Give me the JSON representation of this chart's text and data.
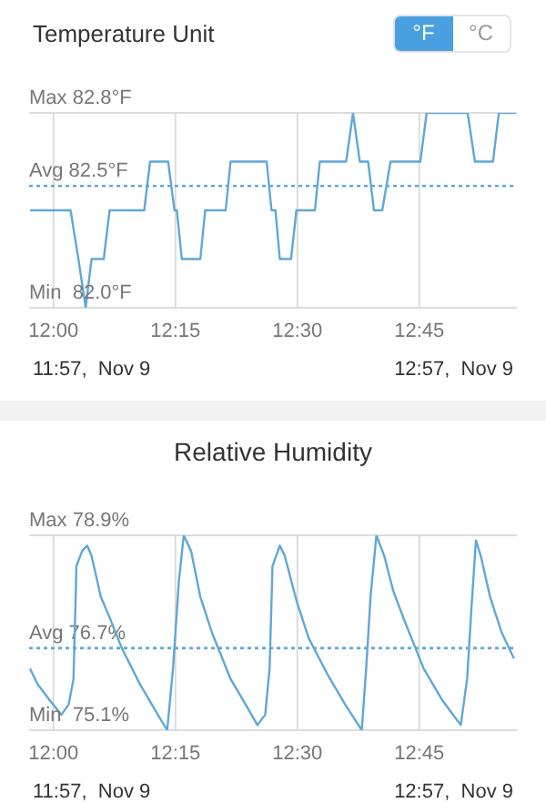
{
  "chart_data": [
    {
      "type": "line",
      "title": "Temperature Unit",
      "annotations": [
        "°F",
        "°C",
        "11:57,  Nov 9",
        "12:57,  Nov 9",
        "Min",
        "Max"
      ],
      "x": [
        11.952,
        12.035,
        12.051,
        12.066,
        12.078,
        12.103,
        12.115,
        12.186,
        12.198,
        12.235,
        12.248,
        12.253,
        12.263,
        12.301,
        12.311,
        12.353,
        12.363,
        12.437,
        12.447,
        12.455,
        12.464,
        12.487,
        12.498,
        12.536,
        12.546,
        12.6,
        12.614,
        12.628,
        12.645,
        12.657,
        12.674,
        12.691,
        12.752,
        12.765,
        12.849,
        12.864,
        12.901,
        12.913,
        12.948
      ],
      "series": [
        {
          "color": "#5fa8d6",
          "values": [
            82.4,
            82.4,
            82.2,
            82.0,
            82.2,
            82.2,
            82.4,
            82.4,
            82.6,
            82.6,
            82.4,
            82.4,
            82.2,
            82.2,
            82.4,
            82.4,
            82.6,
            82.6,
            82.4,
            82.4,
            82.2,
            82.2,
            82.4,
            82.4,
            82.6,
            82.6,
            82.8,
            82.6,
            82.6,
            82.4,
            82.4,
            82.6,
            82.6,
            82.8,
            82.8,
            82.6,
            82.6,
            82.8,
            82.8
          ]
        }
      ],
      "xlim": [
        11.95,
        12.95
      ],
      "xticks": [
        {
          "value": 12,
          "label": "12:00"
        },
        {
          "value": 12.25,
          "label": "12:15"
        },
        {
          "value": 12.5,
          "label": "12:30"
        },
        {
          "value": 12.75,
          "label": "12:45"
        }
      ],
      "ylim": [
        82.0,
        82.8
      ],
      "yticks": [
        {
          "value": 82.0,
          "label": "82.0°F"
        },
        {
          "value": 82.8,
          "label": "82.8°F"
        }
      ],
      "ref_lines": [
        {
          "axis": "y",
          "value": 82.5,
          "label": "Avg 82.5°F",
          "color": "#5fa8d6",
          "line_style": "dotted"
        }
      ],
      "grid": true
    },
    {
      "type": "line",
      "title": "Relative Humidity",
      "annotations": [
        "11:57,  Nov 9",
        "12:57,  Nov 9",
        "Min",
        "Max"
      ],
      "x": [
        11.952,
        11.967,
        11.991,
        12.016,
        12.031,
        12.041,
        12.047,
        12.059,
        12.069,
        12.078,
        12.097,
        12.115,
        12.14,
        12.177,
        12.214,
        12.233,
        12.245,
        12.257,
        12.267,
        12.282,
        12.301,
        12.325,
        12.363,
        12.4,
        12.418,
        12.434,
        12.443,
        12.449,
        12.464,
        12.474,
        12.499,
        12.523,
        12.561,
        12.598,
        12.632,
        12.641,
        12.65,
        12.662,
        12.678,
        12.697,
        12.721,
        12.759,
        12.796,
        12.827,
        12.835,
        12.848,
        12.857,
        12.866,
        12.876,
        12.895,
        12.919,
        12.944
      ],
      "series": [
        {
          "color": "#5fa8d6",
          "values": [
            76.3,
            76.0,
            75.7,
            75.4,
            75.6,
            76.1,
            78.3,
            78.6,
            78.7,
            78.5,
            77.7,
            77.3,
            76.7,
            76.0,
            75.4,
            75.1,
            76.3,
            78.0,
            78.9,
            78.6,
            77.7,
            77.0,
            76.1,
            75.5,
            75.2,
            75.4,
            76.3,
            78.3,
            78.7,
            78.5,
            77.6,
            76.9,
            76.2,
            75.6,
            75.1,
            76.3,
            77.7,
            78.9,
            78.5,
            77.8,
            77.2,
            76.3,
            75.7,
            75.3,
            75.2,
            76.1,
            77.5,
            78.8,
            78.5,
            77.7,
            77.0,
            76.5
          ]
        }
      ],
      "xlim": [
        11.95,
        12.95
      ],
      "xticks": [
        {
          "value": 12,
          "label": "12:00"
        },
        {
          "value": 12.25,
          "label": "12:15"
        },
        {
          "value": 12.5,
          "label": "12:30"
        },
        {
          "value": 12.75,
          "label": "12:45"
        }
      ],
      "ylim": [
        75.1,
        78.9
      ],
      "yticks": [
        {
          "value": 75.1,
          "label": "75.1%"
        },
        {
          "value": 78.9,
          "label": "78.9%"
        }
      ],
      "ref_lines": [
        {
          "axis": "y",
          "value": 76.7,
          "label": "Avg 76.7%",
          "color": "#5fa8d6",
          "line_style": "dotted"
        }
      ],
      "grid": true
    }
  ]
}
